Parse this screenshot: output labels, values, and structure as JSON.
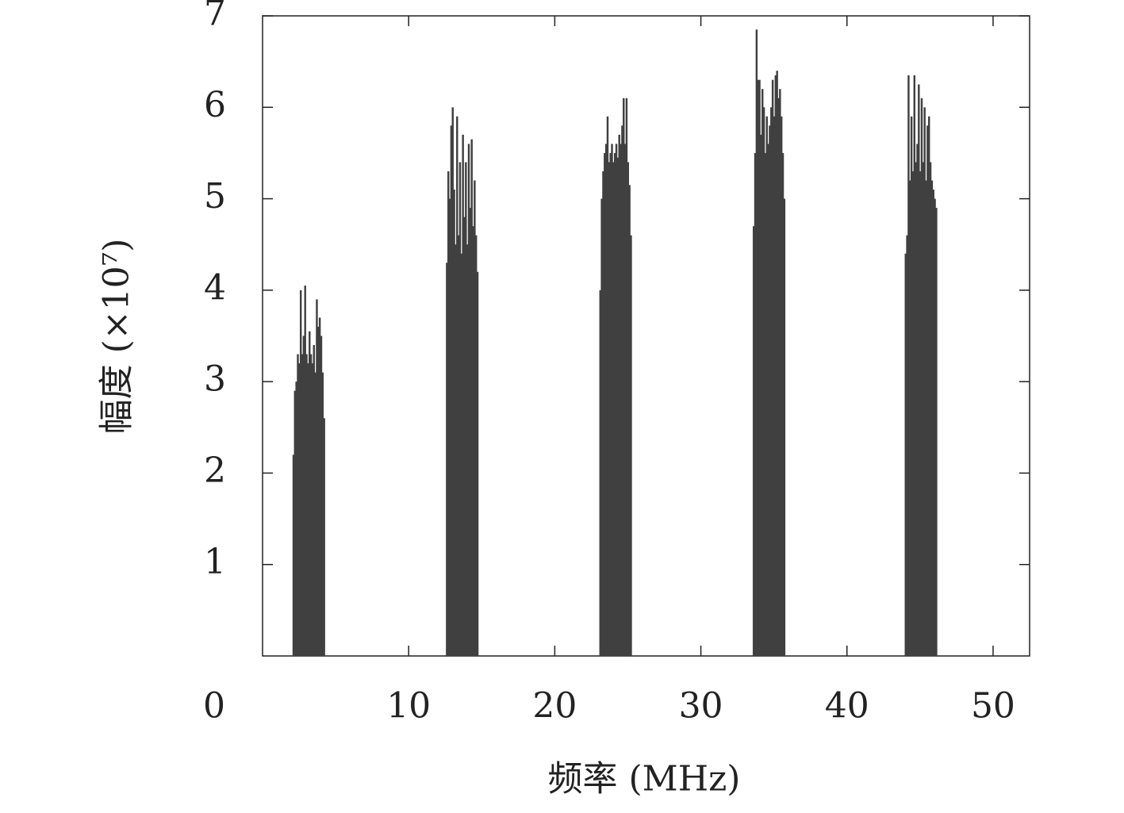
{
  "chart_data": {
    "type": "bar",
    "x_label": "频率 (MHz)",
    "y_label": "幅度 (×10⁷)",
    "xlim": [
      0,
      52.5
    ],
    "ylim": [
      0,
      7
    ],
    "xticks": [
      0,
      10,
      20,
      30,
      40,
      50
    ],
    "yticks": [
      1,
      2,
      3,
      4,
      5,
      6,
      7
    ],
    "color": "#404040",
    "x": [
      2.1,
      2.2,
      2.3,
      2.4,
      2.5,
      2.6,
      2.7,
      2.8,
      2.9,
      3.0,
      3.1,
      3.2,
      3.3,
      3.4,
      3.5,
      3.6,
      3.7,
      3.8,
      3.9,
      4.0,
      4.1,
      4.2,
      12.6,
      12.7,
      12.8,
      12.9,
      13.0,
      13.1,
      13.2,
      13.3,
      13.4,
      13.5,
      13.6,
      13.7,
      13.8,
      13.9,
      14.0,
      14.1,
      14.2,
      14.3,
      14.4,
      14.5,
      14.6,
      14.7,
      23.1,
      23.2,
      23.3,
      23.4,
      23.5,
      23.6,
      23.7,
      23.8,
      23.9,
      24.0,
      24.1,
      24.2,
      24.3,
      24.4,
      24.5,
      24.6,
      24.7,
      24.8,
      24.9,
      25.0,
      25.1,
      25.2,
      33.6,
      33.7,
      33.8,
      33.9,
      34.0,
      34.1,
      34.2,
      34.3,
      34.4,
      34.5,
      34.6,
      34.7,
      34.8,
      34.9,
      35.0,
      35.1,
      35.2,
      35.3,
      35.4,
      35.5,
      35.6,
      35.7,
      44.0,
      44.1,
      44.2,
      44.3,
      44.4,
      44.5,
      44.6,
      44.7,
      44.8,
      44.9,
      45.0,
      45.1,
      45.2,
      45.3,
      45.4,
      45.5,
      45.6,
      45.7,
      45.8,
      45.9,
      46.0,
      46.1
    ],
    "values": [
      2.2,
      2.9,
      3.0,
      3.3,
      3.2,
      4.0,
      3.3,
      3.5,
      4.05,
      3.3,
      3.2,
      3.55,
      3.3,
      3.2,
      3.4,
      3.1,
      3.9,
      3.6,
      3.7,
      3.5,
      3.1,
      2.6,
      4.3,
      5.3,
      5.0,
      5.8,
      6.0,
      5.1,
      4.5,
      5.9,
      4.6,
      5.4,
      4.4,
      5.7,
      4.8,
      5.4,
      4.5,
      5.6,
      4.9,
      5.65,
      4.7,
      5.2,
      4.6,
      4.2,
      4.0,
      5.0,
      5.3,
      5.5,
      5.6,
      5.9,
      5.4,
      5.5,
      5.6,
      5.4,
      5.5,
      5.6,
      5.45,
      5.7,
      5.6,
      5.8,
      6.1,
      5.6,
      6.1,
      5.4,
      5.15,
      4.6,
      4.7,
      5.5,
      6.85,
      6.3,
      6.3,
      5.7,
      6.2,
      6.0,
      5.5,
      5.9,
      5.6,
      5.8,
      6.0,
      6.3,
      5.9,
      6.35,
      6.4,
      6.1,
      6.2,
      5.9,
      5.5,
      5.0,
      4.4,
      4.6,
      6.35,
      5.2,
      5.9,
      5.3,
      6.35,
      5.4,
      5.6,
      6.25,
      5.3,
      6.1,
      5.4,
      6.0,
      5.2,
      5.8,
      5.9,
      5.4,
      5.2,
      5.1,
      5.0,
      4.9
    ]
  }
}
